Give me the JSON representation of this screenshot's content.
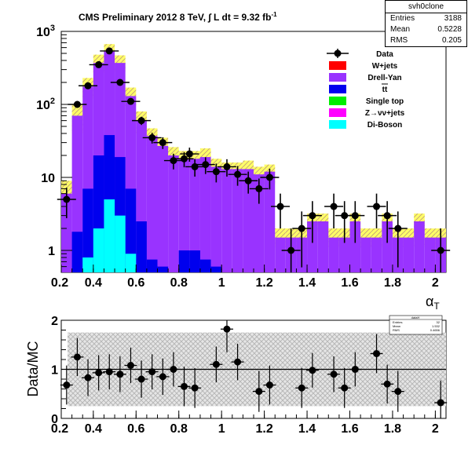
{
  "title": {
    "main": "CMS Preliminary 2012 8 TeV, ∫ L dt = 9.32 fb",
    "sup": "-1"
  },
  "stats_box": {
    "name": "svh0clone",
    "rows": [
      {
        "label": "Entries",
        "value": "3188"
      },
      {
        "label": "Mean",
        "value": "0.5228"
      },
      {
        "label": "RMS",
        "value": "0.205"
      }
    ]
  },
  "ratio_stats_box": {
    "name": "dataH",
    "rows": [
      {
        "label": "Entries",
        "value": "32"
      },
      {
        "label": "Mean",
        "value": "1.532"
      },
      {
        "label": "RMS",
        "value": "0.4656"
      }
    ]
  },
  "colors": {
    "wjets": "#ff0000",
    "drellyan": "#9933ff",
    "ttbar": "#0000ee",
    "singletop": "#00ee00",
    "znunu": "#ff00ff",
    "diboson": "#00ffff",
    "band": "#ffff66",
    "data": "#000000"
  },
  "chart_data": [
    {
      "type": "bar",
      "stacked": true,
      "log_y": true,
      "xlabel_main": "α",
      "xlabel_sub": "T",
      "ylabel": "",
      "xlim": [
        0.25,
        2.05
      ],
      "ylim": [
        0.5,
        1000
      ],
      "x_ticks": [
        "0.2",
        "0.4",
        "0.6",
        "0.8",
        "1",
        "1.2",
        "1.4",
        "1.6",
        "1.8",
        "2"
      ],
      "y_ticks": [
        {
          "base": "1",
          "sup": ""
        },
        {
          "base": "10",
          "sup": ""
        },
        {
          "base": "10",
          "sup": "2"
        },
        {
          "base": "10",
          "sup": "3"
        }
      ],
      "legend": [
        {
          "label": "Data",
          "key": "data"
        },
        {
          "label": "W+jets",
          "key": "wjets"
        },
        {
          "label": "Drell-Yan",
          "key": "drellyan"
        },
        {
          "label": "tt",
          "key": "ttbar"
        },
        {
          "label": "Single top",
          "key": "singletop"
        },
        {
          "label": "Z→νν+jets",
          "key": "znunu"
        },
        {
          "label": "Di-Boson",
          "key": "diboson"
        }
      ],
      "bin_edges": [
        0.25,
        0.3,
        0.35,
        0.4,
        0.45,
        0.5,
        0.55,
        0.6,
        0.65,
        0.7,
        0.75,
        0.8,
        0.85,
        0.9,
        0.95,
        1.0,
        1.05,
        1.1,
        1.15,
        1.2,
        1.25,
        1.3,
        1.35,
        1.4,
        1.45,
        1.5,
        1.55,
        1.6,
        1.65,
        1.7,
        1.75,
        1.8,
        1.85,
        1.9,
        1.95,
        2.0,
        2.05
      ],
      "series": [
        {
          "key": "diboson",
          "values": [
            0,
            0,
            0.8,
            2,
            5,
            3,
            0.9,
            0,
            0,
            0,
            0,
            0,
            0,
            0,
            0,
            0,
            0,
            0,
            0,
            0,
            0,
            0,
            0,
            0,
            0,
            0,
            0,
            0,
            0,
            0,
            0,
            0,
            0,
            0,
            0,
            0
          ]
        },
        {
          "key": "singletop",
          "values": [
            0,
            0,
            0,
            0,
            1,
            0,
            0,
            0,
            0,
            0,
            0,
            0,
            0,
            0,
            0,
            0,
            0,
            0,
            0,
            0,
            0,
            0,
            0,
            0,
            0,
            0,
            0,
            0,
            0,
            0,
            0,
            0,
            0,
            0,
            0,
            0
          ]
        },
        {
          "key": "ttbar",
          "values": [
            0,
            1.8,
            7,
            20,
            38,
            19,
            7,
            2.5,
            0.75,
            0.6,
            0,
            1,
            1,
            0.75,
            0.6,
            0,
            0,
            0,
            0,
            0,
            0,
            0,
            0,
            0,
            0,
            0,
            0,
            0,
            0,
            0,
            0,
            0,
            0,
            0,
            0,
            0
          ]
        },
        {
          "key": "drellyan",
          "values": [
            6,
            70,
            175,
            370,
            530,
            370,
            130,
            60,
            37,
            27,
            20,
            18,
            18,
            19,
            14,
            13,
            13,
            13,
            11,
            12,
            1.5,
            1.5,
            1.5,
            2.5,
            2.5,
            1.5,
            1.5,
            2.5,
            1.5,
            1.5,
            2.5,
            1.5,
            1.5,
            2.5,
            1.5,
            1.5
          ]
        }
      ],
      "band_hi": [
        9,
        100,
        230,
        480,
        670,
        470,
        170,
        80,
        47,
        35,
        26,
        23,
        23,
        25,
        18,
        16,
        16,
        17,
        14,
        15,
        2,
        2,
        2,
        3.2,
        3.2,
        2,
        2,
        3.2,
        2,
        2,
        3.2,
        2,
        2,
        3.2,
        2,
        2
      ],
      "band_lo": [
        4,
        40,
        120,
        270,
        400,
        280,
        95,
        40,
        27,
        19,
        14,
        13,
        13,
        13,
        10,
        9,
        9,
        9,
        8,
        8,
        1.1,
        1.1,
        1.1,
        1.8,
        1.8,
        1.1,
        1.1,
        1.8,
        1.1,
        1.1,
        1.8,
        1.1,
        1.1,
        1.8,
        1.1,
        1.1
      ],
      "data": {
        "x": [
          0.275,
          0.325,
          0.375,
          0.425,
          0.475,
          0.525,
          0.575,
          0.625,
          0.675,
          0.725,
          0.775,
          0.825,
          0.85,
          0.875,
          0.925,
          0.975,
          1.025,
          1.075,
          1.125,
          1.175,
          1.225,
          1.275,
          1.325,
          1.375,
          1.425,
          1.525,
          1.575,
          1.625,
          1.725,
          1.775,
          1.825,
          2.025
        ],
        "y": [
          5,
          100,
          180,
          350,
          540,
          200,
          110,
          60,
          35,
          30,
          17,
          18,
          21,
          14,
          15,
          12,
          14,
          11,
          9,
          7,
          10,
          4,
          1,
          2,
          3,
          4,
          3,
          3,
          4,
          3,
          2,
          1
        ]
      }
    },
    {
      "type": "scatter",
      "ylabel": "Data/MC",
      "xlim": [
        0.25,
        2.05
      ],
      "ylim": [
        0,
        2
      ],
      "reference_line": 1,
      "x_ticks": [
        "0.2",
        "0.4",
        "0.6",
        "0.8",
        "1",
        "1.2",
        "1.4",
        "1.6",
        "1.8",
        "2"
      ],
      "y_ticks": [
        "0",
        "1",
        "2"
      ],
      "band": {
        "x": [
          0.25,
          2.05
        ],
        "lo": 0.25,
        "hi": 1.75
      },
      "points": {
        "x": [
          0.275,
          0.325,
          0.375,
          0.425,
          0.475,
          0.525,
          0.575,
          0.625,
          0.675,
          0.725,
          0.775,
          0.825,
          0.875,
          0.975,
          1.025,
          1.075,
          1.175,
          1.225,
          1.375,
          1.425,
          1.525,
          1.575,
          1.625,
          1.725,
          1.775,
          1.825,
          2.025
        ],
        "y": [
          0.68,
          1.25,
          0.83,
          0.93,
          0.95,
          0.9,
          1.08,
          0.8,
          0.95,
          0.85,
          1.0,
          0.65,
          0.62,
          1.1,
          1.82,
          1.15,
          0.55,
          0.68,
          0.62,
          0.98,
          0.9,
          0.62,
          1.0,
          1.32,
          0.7,
          0.55,
          0.32
        ]
      }
    }
  ]
}
